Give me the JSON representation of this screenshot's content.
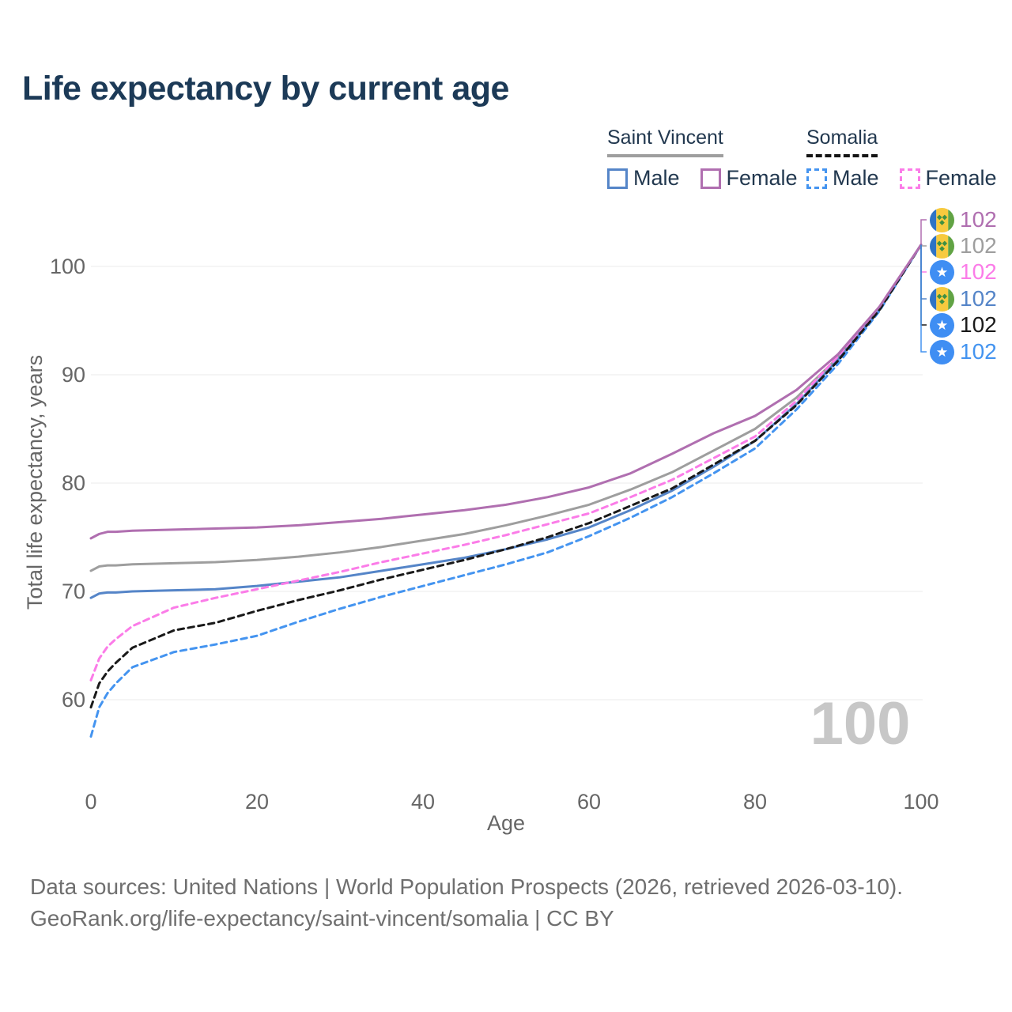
{
  "title": "Life expectancy by current age",
  "watermark": "100",
  "legend": {
    "groups": [
      {
        "label": "Saint Vincent",
        "line_style": "solid",
        "underline_color": "#9e9e9e",
        "items": [
          {
            "label": "Male",
            "color": "#5585c8",
            "dashed": false
          },
          {
            "label": "Female",
            "color": "#b06fb0",
            "dashed": false
          }
        ]
      },
      {
        "label": "Somalia",
        "line_style": "dashed",
        "underline_color": "#141414",
        "items": [
          {
            "label": "Male",
            "color": "#4494f0",
            "dashed": true
          },
          {
            "label": "Female",
            "color": "#fb7ce8",
            "dashed": true
          }
        ]
      }
    ]
  },
  "chart_data": {
    "type": "line",
    "title": "Life expectancy by current age",
    "xlabel": "Age",
    "ylabel": "Total life expectancy, years",
    "xlim": [
      0,
      100
    ],
    "ylim": [
      56,
      104
    ],
    "grid": true,
    "legend_position": "top-right",
    "x_ticks": [
      0,
      20,
      40,
      60,
      80,
      100
    ],
    "y_ticks": [
      60,
      70,
      80,
      90,
      100
    ],
    "x": [
      0,
      1,
      2,
      3,
      5,
      10,
      15,
      20,
      25,
      30,
      35,
      40,
      45,
      50,
      55,
      60,
      65,
      70,
      75,
      80,
      85,
      90,
      95,
      100
    ],
    "series": [
      {
        "name": "Saint Vincent Female",
        "color": "#b06fb0",
        "dashed": false,
        "values": [
          74.9,
          75.3,
          75.5,
          75.5,
          75.6,
          75.7,
          75.8,
          75.9,
          76.1,
          76.4,
          76.7,
          77.1,
          77.5,
          78.0,
          78.7,
          79.6,
          80.9,
          82.7,
          84.6,
          86.2,
          88.6,
          91.9,
          96.3,
          102
        ]
      },
      {
        "name": "Saint Vincent",
        "color": "#9e9e9e",
        "dashed": false,
        "values": [
          71.9,
          72.3,
          72.4,
          72.4,
          72.5,
          72.6,
          72.7,
          72.9,
          73.2,
          73.6,
          74.1,
          74.7,
          75.3,
          76.1,
          77.0,
          78.0,
          79.4,
          81.0,
          83.0,
          85.0,
          87.9,
          91.6,
          96.2,
          102
        ]
      },
      {
        "name": "Saint Vincent Male",
        "color": "#5585c8",
        "dashed": false,
        "values": [
          69.4,
          69.8,
          69.9,
          69.9,
          70.0,
          70.1,
          70.2,
          70.5,
          70.9,
          71.3,
          71.9,
          72.5,
          73.1,
          73.9,
          74.8,
          75.9,
          77.5,
          79.3,
          81.5,
          83.9,
          87.3,
          91.4,
          96.1,
          102
        ]
      },
      {
        "name": "Somalia Female",
        "color": "#fb7ce8",
        "dashed": true,
        "values": [
          61.8,
          63.8,
          64.9,
          65.6,
          66.8,
          68.5,
          69.4,
          70.2,
          71.0,
          71.8,
          72.7,
          73.5,
          74.3,
          75.2,
          76.2,
          77.2,
          78.7,
          80.3,
          82.3,
          84.3,
          87.6,
          91.7,
          96.3,
          102
        ]
      },
      {
        "name": "Somalia",
        "color": "#1a1a1a",
        "dashed": true,
        "values": [
          59.3,
          61.5,
          62.6,
          63.4,
          64.8,
          66.4,
          67.1,
          68.2,
          69.2,
          70.1,
          71.1,
          72.0,
          72.9,
          73.9,
          75.0,
          76.3,
          77.9,
          79.5,
          81.7,
          83.9,
          87.2,
          91.3,
          96.0,
          102
        ]
      },
      {
        "name": "Somalia Male",
        "color": "#4494f0",
        "dashed": true,
        "values": [
          56.6,
          59.3,
          60.6,
          61.5,
          63.0,
          64.4,
          65.1,
          65.9,
          67.2,
          68.4,
          69.5,
          70.5,
          71.5,
          72.5,
          73.6,
          75.1,
          76.8,
          78.7,
          80.9,
          83.2,
          86.8,
          91.0,
          95.9,
          102
        ]
      }
    ],
    "end_labels": [
      {
        "series": "Saint Vincent Female",
        "flag": "saint-vincent",
        "value": "102",
        "color": "#b06fb0"
      },
      {
        "series": "Saint Vincent",
        "flag": "saint-vincent",
        "value": "102",
        "color": "#9e9e9e"
      },
      {
        "series": "Somalia Female",
        "flag": "somalia",
        "value": "102",
        "color": "#fb7ce8"
      },
      {
        "series": "Saint Vincent Male",
        "flag": "saint-vincent",
        "value": "102",
        "color": "#5585c8"
      },
      {
        "series": "Somalia",
        "flag": "somalia",
        "value": "102",
        "color": "#1a1a1a"
      },
      {
        "series": "Somalia Male",
        "flag": "somalia",
        "value": "102",
        "color": "#4494f0"
      }
    ]
  },
  "footer": {
    "line1": "Data sources: United Nations | World Population Prospects (2026, retrieved 2026-03-10).",
    "line2": "GeoRank.org/life-expectancy/saint-vincent/somalia | CC BY"
  }
}
